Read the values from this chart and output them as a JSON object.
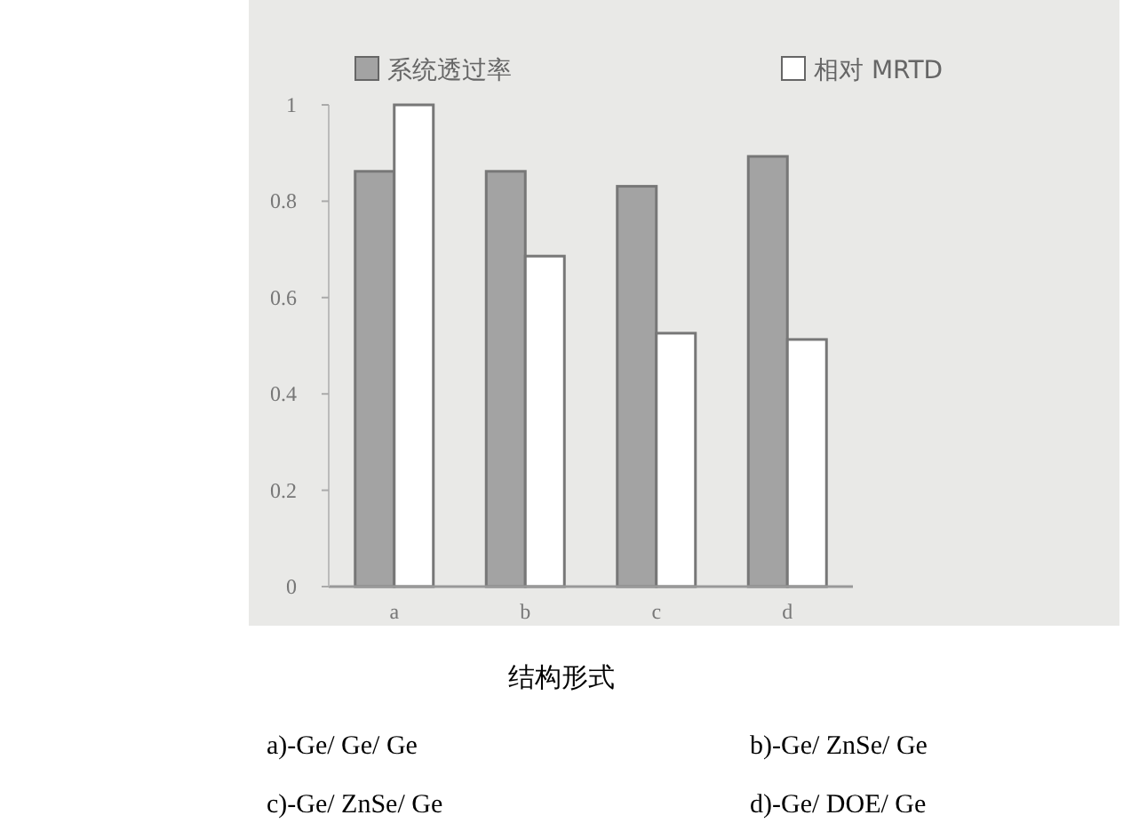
{
  "chart_data": {
    "type": "bar",
    "categories": [
      "a",
      "b",
      "c",
      "d"
    ],
    "series": [
      {
        "name": "系统透过率",
        "color": "#a3a3a3",
        "values": [
          0.862,
          0.862,
          0.831,
          0.893
        ]
      },
      {
        "name": "相对 MRTD",
        "color": "#ffffff",
        "values": [
          1.0,
          0.686,
          0.526,
          0.513
        ]
      }
    ],
    "ylim": [
      0,
      1
    ],
    "yticks": [
      0,
      0.2,
      0.4,
      0.6,
      0.8,
      1
    ],
    "grid": false,
    "legend": "top",
    "xlabel": "结构形式",
    "annotations": [
      "a)-Ge/ Ge/ Ge",
      "b)-Ge/ ZnSe/ Ge",
      "c)-Ge/ ZnSe/ Ge",
      "d)-Ge/ DOE/ Ge"
    ]
  }
}
